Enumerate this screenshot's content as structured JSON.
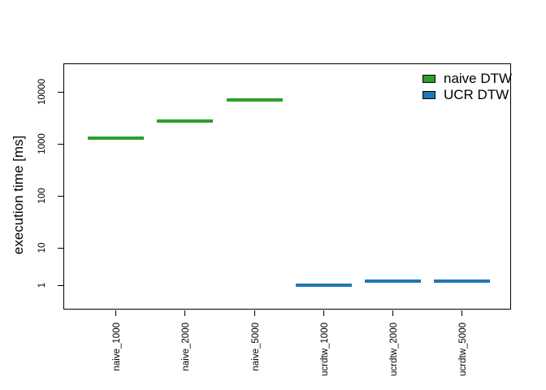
{
  "figure": {
    "y_axis_title": "execution time [ms]",
    "legend": [
      {
        "label": "naive DTW",
        "color": "#2ca02c"
      },
      {
        "label": "UCR DTW",
        "color": "#1f77b4"
      }
    ]
  },
  "chart_data": {
    "type": "bar",
    "mark_style": "horizontal-dash (collapsed boxplot-like segment per category)",
    "title": "",
    "xlabel": "",
    "ylabel": "execution time [ms]",
    "y_scale": "log",
    "y_tick_labels": [
      "1",
      "10",
      "100",
      "1000",
      "10000"
    ],
    "ylim": [
      0.5,
      40000
    ],
    "grid": false,
    "legend_position": "top-right-inside",
    "categories": [
      "naive_1000",
      "naive_2000",
      "naive_5000",
      "ucrdtw_1000",
      "ucrdtw_2000",
      "ucrdtw_5000"
    ],
    "series": [
      {
        "name": "naive DTW",
        "color": "#2ca02c",
        "values": [
          1300,
          2700,
          7000,
          null,
          null,
          null
        ]
      },
      {
        "name": "UCR DTW",
        "color": "#1f77b4",
        "values": [
          null,
          null,
          null,
          1.0,
          1.3,
          1.3
        ]
      }
    ]
  }
}
